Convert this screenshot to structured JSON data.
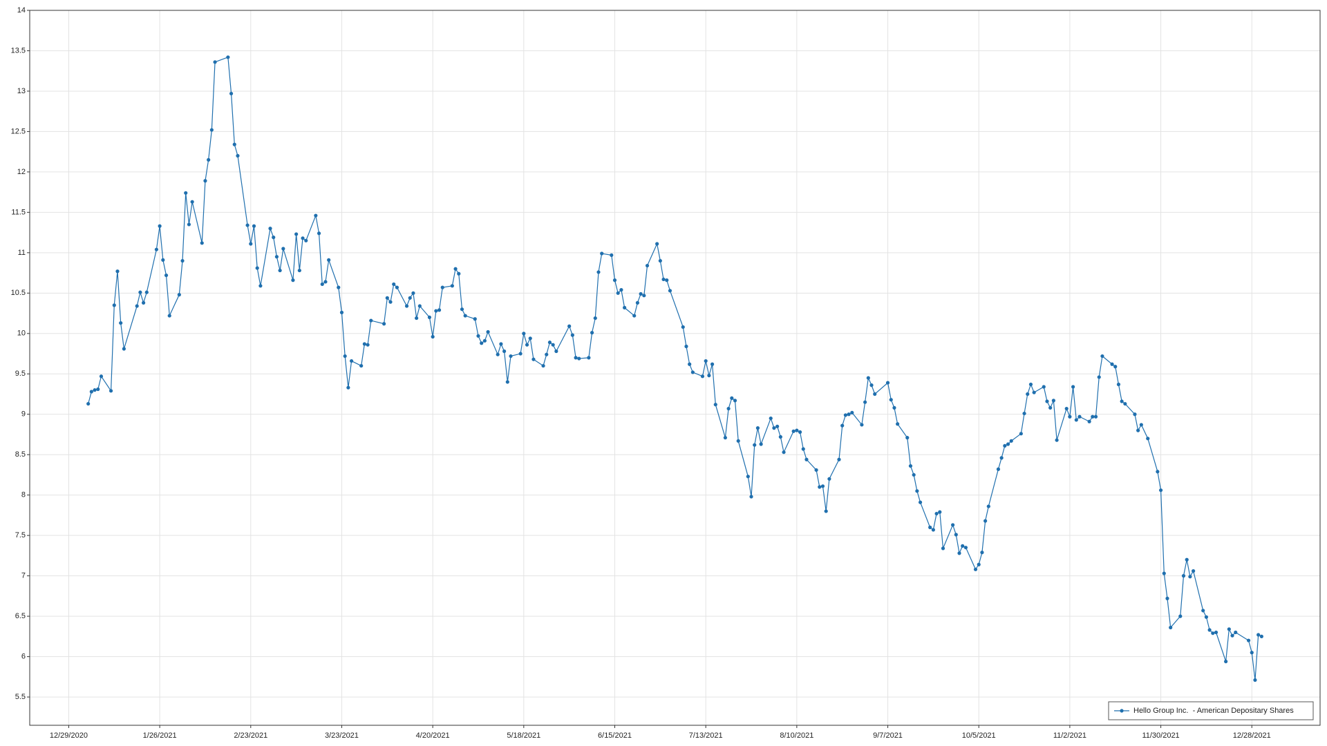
{
  "chart_data": {
    "type": "line",
    "x": [
      "1/4/2021",
      "1/5/2021",
      "1/6/2021",
      "1/7/2021",
      "1/8/2021",
      "1/11/2021",
      "1/12/2021",
      "1/13/2021",
      "1/14/2021",
      "1/15/2021",
      "1/19/2021",
      "1/20/2021",
      "1/21/2021",
      "1/22/2021",
      "1/25/2021",
      "1/26/2021",
      "1/27/2021",
      "1/28/2021",
      "1/29/2021",
      "2/1/2021",
      "2/2/2021",
      "2/3/2021",
      "2/4/2021",
      "2/5/2021",
      "2/8/2021",
      "2/9/2021",
      "2/10/2021",
      "2/11/2021",
      "2/12/2021",
      "2/16/2021",
      "2/17/2021",
      "2/18/2021",
      "2/19/2021",
      "2/22/2021",
      "2/23/2021",
      "2/24/2021",
      "2/25/2021",
      "2/26/2021",
      "3/1/2021",
      "3/2/2021",
      "3/3/2021",
      "3/4/2021",
      "3/5/2021",
      "3/8/2021",
      "3/9/2021",
      "3/10/2021",
      "3/11/2021",
      "3/12/2021",
      "3/15/2021",
      "3/16/2021",
      "3/17/2021",
      "3/18/2021",
      "3/19/2021",
      "3/22/2021",
      "3/23/2021",
      "3/24/2021",
      "3/25/2021",
      "3/26/2021",
      "3/29/2021",
      "3/30/2021",
      "3/31/2021",
      "4/1/2021",
      "4/5/2021",
      "4/6/2021",
      "4/7/2021",
      "4/8/2021",
      "4/9/2021",
      "4/12/2021",
      "4/13/2021",
      "4/14/2021",
      "4/15/2021",
      "4/16/2021",
      "4/19/2021",
      "4/20/2021",
      "4/21/2021",
      "4/22/2021",
      "4/23/2021",
      "4/26/2021",
      "4/27/2021",
      "4/28/2021",
      "4/29/2021",
      "4/30/2021",
      "5/3/2021",
      "5/4/2021",
      "5/5/2021",
      "5/6/2021",
      "5/7/2021",
      "5/10/2021",
      "5/11/2021",
      "5/12/2021",
      "5/13/2021",
      "5/14/2021",
      "5/17/2021",
      "5/18/2021",
      "5/19/2021",
      "5/20/2021",
      "5/21/2021",
      "5/24/2021",
      "5/25/2021",
      "5/26/2021",
      "5/27/2021",
      "5/28/2021",
      "6/1/2021",
      "6/2/2021",
      "6/3/2021",
      "6/4/2021",
      "6/7/2021",
      "6/8/2021",
      "6/9/2021",
      "6/10/2021",
      "6/11/2021",
      "6/14/2021",
      "6/15/2021",
      "6/16/2021",
      "6/17/2021",
      "6/18/2021",
      "6/21/2021",
      "6/22/2021",
      "6/23/2021",
      "6/24/2021",
      "6/25/2021",
      "6/28/2021",
      "6/29/2021",
      "6/30/2021",
      "7/1/2021",
      "7/2/2021",
      "7/6/2021",
      "7/7/2021",
      "7/8/2021",
      "7/9/2021",
      "7/12/2021",
      "7/13/2021",
      "7/14/2021",
      "7/15/2021",
      "7/16/2021",
      "7/19/2021",
      "7/20/2021",
      "7/21/2021",
      "7/22/2021",
      "7/23/2021",
      "7/26/2021",
      "7/27/2021",
      "7/28/2021",
      "7/29/2021",
      "7/30/2021",
      "8/2/2021",
      "8/3/2021",
      "8/4/2021",
      "8/5/2021",
      "8/6/2021",
      "8/9/2021",
      "8/10/2021",
      "8/11/2021",
      "8/12/2021",
      "8/13/2021",
      "8/16/2021",
      "8/17/2021",
      "8/18/2021",
      "8/19/2021",
      "8/20/2021",
      "8/23/2021",
      "8/24/2021",
      "8/25/2021",
      "8/26/2021",
      "8/27/2021",
      "8/30/2021",
      "8/31/2021",
      "9/1/2021",
      "9/2/2021",
      "9/3/2021",
      "9/7/2021",
      "9/8/2021",
      "9/9/2021",
      "9/10/2021",
      "9/13/2021",
      "9/14/2021",
      "9/15/2021",
      "9/16/2021",
      "9/17/2021",
      "9/20/2021",
      "9/21/2021",
      "9/22/2021",
      "9/23/2021",
      "9/24/2021",
      "9/27/2021",
      "9/28/2021",
      "9/29/2021",
      "9/30/2021",
      "10/1/2021",
      "10/4/2021",
      "10/5/2021",
      "10/6/2021",
      "10/7/2021",
      "10/8/2021",
      "10/11/2021",
      "10/12/2021",
      "10/13/2021",
      "10/14/2021",
      "10/15/2021",
      "10/18/2021",
      "10/19/2021",
      "10/20/2021",
      "10/21/2021",
      "10/22/2021",
      "10/25/2021",
      "10/26/2021",
      "10/27/2021",
      "10/28/2021",
      "10/29/2021",
      "11/1/2021",
      "11/2/2021",
      "11/3/2021",
      "11/4/2021",
      "11/5/2021",
      "11/8/2021",
      "11/9/2021",
      "11/10/2021",
      "11/11/2021",
      "11/12/2021",
      "11/15/2021",
      "11/16/2021",
      "11/17/2021",
      "11/18/2021",
      "11/19/2021",
      "11/22/2021",
      "11/23/2021",
      "11/24/2021",
      "11/26/2021",
      "11/29/2021",
      "11/30/2021",
      "12/1/2021",
      "12/2/2021",
      "12/3/2021",
      "12/6/2021",
      "12/7/2021",
      "12/8/2021",
      "12/9/2021",
      "12/10/2021",
      "12/13/2021",
      "12/14/2021",
      "12/15/2021",
      "12/16/2021",
      "12/17/2021",
      "12/20/2021",
      "12/21/2021",
      "12/22/2021",
      "12/23/2021",
      "12/27/2021",
      "12/28/2021",
      "12/29/2021",
      "12/30/2021",
      "12/31/2021"
    ],
    "series": [
      {
        "name": "Hello Group Inc.  - American Depositary Shares",
        "color": "#1f6fae",
        "values": [
          9.13,
          9.28,
          9.3,
          9.31,
          9.47,
          9.29,
          10.35,
          10.77,
          10.13,
          9.81,
          10.34,
          10.51,
          10.38,
          10.51,
          11.04,
          11.33,
          10.91,
          10.72,
          10.22,
          10.48,
          10.9,
          11.74,
          11.35,
          11.63,
          11.12,
          11.89,
          12.15,
          12.52,
          13.36,
          13.42,
          12.97,
          12.34,
          12.2,
          11.34,
          11.11,
          11.33,
          10.81,
          10.59,
          11.3,
          11.19,
          10.95,
          10.78,
          11.05,
          10.66,
          11.23,
          10.78,
          11.18,
          11.15,
          11.46,
          11.24,
          10.61,
          10.64,
          10.91,
          10.57,
          10.26,
          9.72,
          9.33,
          9.66,
          9.6,
          9.87,
          9.86,
          10.16,
          10.12,
          10.44,
          10.39,
          10.61,
          10.57,
          10.34,
          10.44,
          10.5,
          10.19,
          10.34,
          10.2,
          9.96,
          10.28,
          10.29,
          10.57,
          10.59,
          10.8,
          10.74,
          10.3,
          10.22,
          10.18,
          9.97,
          9.88,
          9.91,
          10.02,
          9.74,
          9.87,
          9.78,
          9.4,
          9.72,
          9.75,
          10.0,
          9.86,
          9.94,
          9.68,
          9.6,
          9.74,
          9.89,
          9.86,
          9.78,
          10.09,
          9.98,
          9.7,
          9.69,
          9.7,
          10.01,
          10.19,
          10.76,
          10.99,
          10.97,
          10.66,
          10.5,
          10.54,
          10.32,
          10.22,
          10.38,
          10.49,
          10.47,
          10.84,
          11.11,
          10.9,
          10.67,
          10.66,
          10.53,
          10.08,
          9.84,
          9.62,
          9.52,
          9.47,
          9.66,
          9.48,
          9.62,
          9.12,
          8.71,
          9.07,
          9.2,
          9.17,
          8.67,
          8.23,
          7.98,
          8.62,
          8.83,
          8.63,
          8.95,
          8.83,
          8.85,
          8.72,
          8.53,
          8.79,
          8.8,
          8.78,
          8.57,
          8.44,
          8.31,
          8.1,
          8.11,
          7.8,
          8.2,
          8.44,
          8.86,
          8.99,
          9.0,
          9.02,
          8.87,
          9.15,
          9.45,
          9.36,
          9.25,
          9.39,
          9.18,
          9.08,
          8.88,
          8.71,
          8.36,
          8.25,
          8.05,
          7.91,
          7.6,
          7.57,
          7.77,
          7.79,
          7.34,
          7.63,
          7.51,
          7.28,
          7.37,
          7.35,
          7.08,
          7.14,
          7.29,
          7.68,
          7.86,
          8.32,
          8.46,
          8.61,
          8.63,
          8.67,
          8.76,
          9.01,
          9.25,
          9.37,
          9.27,
          9.34,
          9.16,
          9.08,
          9.17,
          8.68,
          9.07,
          8.97,
          9.34,
          8.93,
          8.97,
          8.91,
          8.97,
          8.97,
          9.46,
          9.72,
          9.62,
          9.59,
          9.37,
          9.16,
          9.13,
          9.0,
          8.8,
          8.87,
          8.7,
          8.29,
          8.06,
          7.03,
          6.72,
          6.36,
          6.5,
          7.0,
          7.2,
          6.99,
          7.06,
          6.57,
          6.49,
          6.33,
          6.29,
          6.3,
          5.94,
          6.34,
          6.26,
          6.3,
          6.2,
          6.05,
          5.71,
          6.27,
          6.25
        ]
      }
    ],
    "xlim": [
      "12/17/2020",
      "1/18/2022"
    ],
    "xticks": [
      "12/29/2020",
      "1/26/2021",
      "2/23/2021",
      "3/23/2021",
      "4/20/2021",
      "5/18/2021",
      "6/15/2021",
      "7/13/2021",
      "8/10/2021",
      "9/7/2021",
      "10/5/2021",
      "11/2/2021",
      "11/30/2021",
      "12/28/2021"
    ],
    "ylim": [
      5.15,
      14
    ],
    "yticks": [
      5.5,
      6,
      6.5,
      7,
      7.5,
      8,
      8.5,
      9,
      9.5,
      10,
      10.5,
      11,
      11.5,
      12,
      12.5,
      13,
      13.5,
      14
    ],
    "grid": true,
    "legend": "lower right"
  }
}
